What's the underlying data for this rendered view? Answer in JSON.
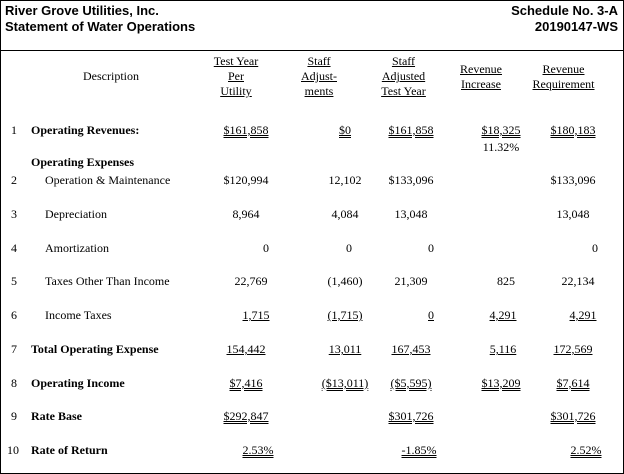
{
  "header": {
    "company": "River Grove Utilities, Inc.",
    "statement": "Statement of Water Operations",
    "schedule": "Schedule No. 3-A",
    "docket": "20190147-WS"
  },
  "columns": {
    "description": "Description",
    "test_year": [
      "Test Year",
      "Per",
      "Utility"
    ],
    "staff_adj": [
      "Staff",
      "Adjust-",
      "ments"
    ],
    "staff_adj_ty": [
      "Staff",
      "Adjusted",
      "Test Year"
    ],
    "rev_increase": [
      "Revenue",
      "Increase"
    ],
    "rev_req": [
      "Revenue",
      "Requirement"
    ]
  },
  "rows": {
    "r1": {
      "num": "1",
      "label": "Operating Revenues:",
      "ty": "$161,858",
      "adj": "$0",
      "aty": "$161,858",
      "inc": "$18,325",
      "req": "$180,183",
      "pct": "11.32%"
    },
    "section": {
      "label": "Operating Expenses"
    },
    "r2": {
      "num": "2",
      "label": "Operation & Maintenance",
      "ty": "$120,994",
      "adj": "12,102",
      "aty": "$133,096",
      "inc": "",
      "req": "$133,096"
    },
    "r3": {
      "num": "3",
      "label": "Depreciation",
      "ty": "8,964",
      "adj": "4,084",
      "aty": "13,048",
      "inc": "",
      "req": "13,048"
    },
    "r4": {
      "num": "4",
      "label": "Amortization",
      "ty": "0",
      "adj": "0",
      "aty": "0",
      "inc": "",
      "req": "0"
    },
    "r5": {
      "num": "5",
      "label": "Taxes Other Than Income",
      "ty": "22,769",
      "adj": "(1,460)",
      "aty": "21,309",
      "inc": "825",
      "req": "22,134"
    },
    "r6": {
      "num": "6",
      "label": "Income Taxes",
      "ty": "1,715",
      "adj": "(1,715)",
      "aty": "0",
      "inc": "4,291",
      "req": "4,291"
    },
    "r7": {
      "num": "7",
      "label": "Total Operating Expense",
      "ty": "154,442",
      "adj": "13,011",
      "aty": "167,453",
      "inc": "5,116",
      "req": "172,569"
    },
    "r8": {
      "num": "8",
      "label": "Operating Income",
      "ty": "$7,416",
      "adj": "($13,011)",
      "aty": "($5,595)",
      "inc": "$13,209",
      "req": "$7,614"
    },
    "r9": {
      "num": "9",
      "label": "Rate Base",
      "ty": "$292,847",
      "adj": "",
      "aty": "$301,726",
      "inc": "",
      "req": "$301,726"
    },
    "r10": {
      "num": "10",
      "label": "Rate of Return",
      "ty": "2.53%",
      "adj": "",
      "aty": "-1.85%",
      "inc": "",
      "req": "2.52%"
    }
  }
}
